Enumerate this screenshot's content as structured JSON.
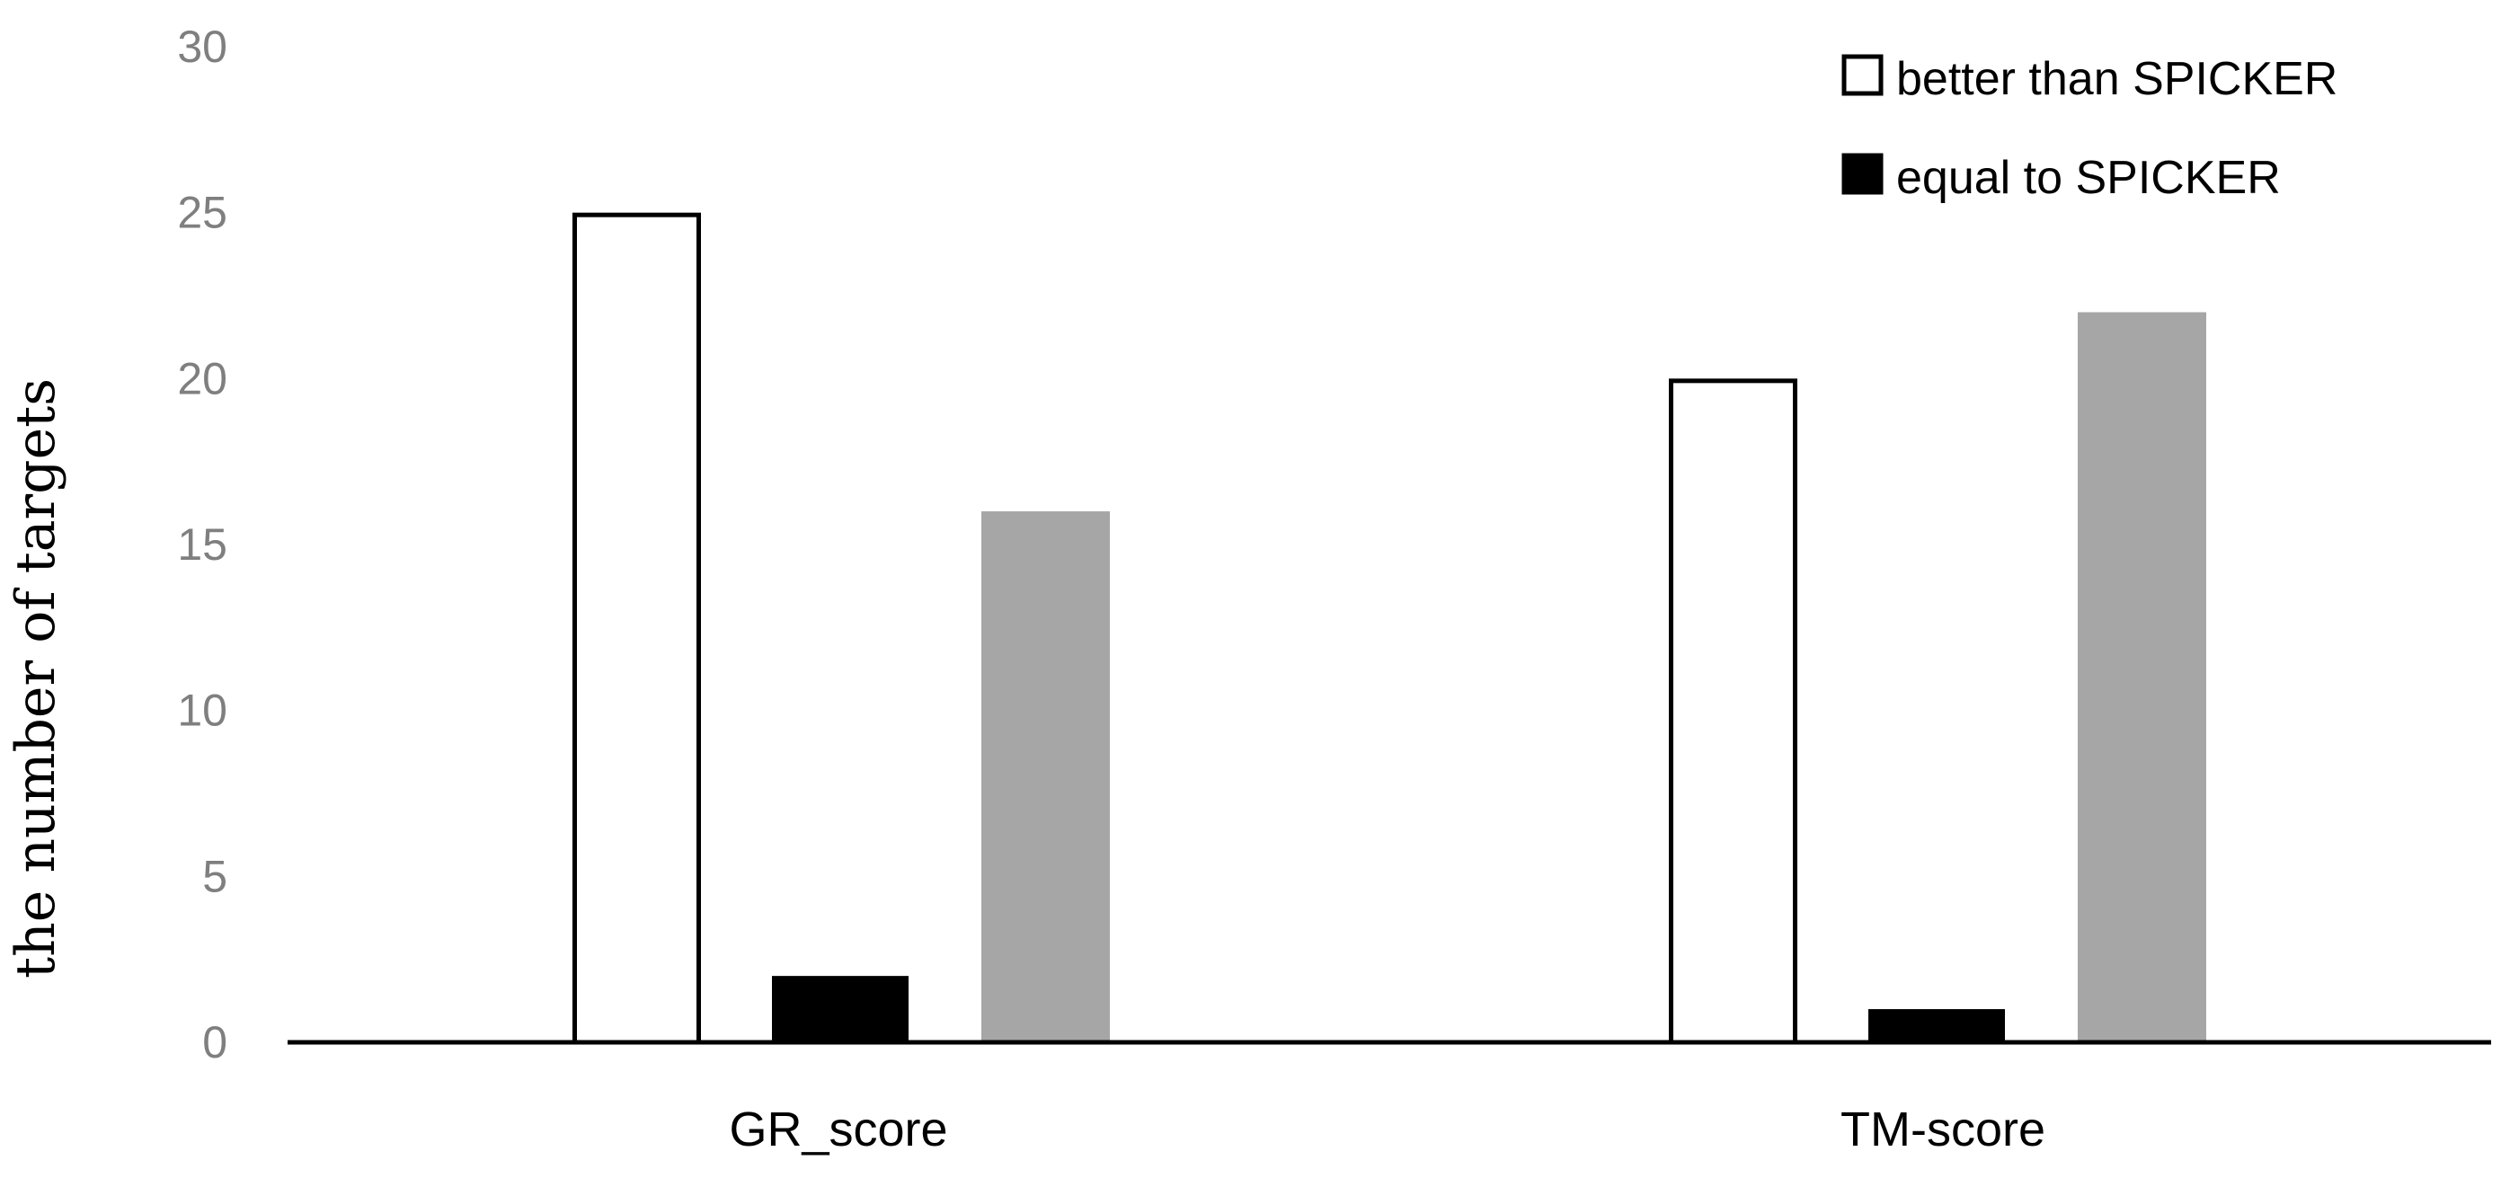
{
  "chart_data": {
    "type": "bar",
    "title": "",
    "xlabel": "",
    "ylabel": "the number of targets",
    "categories": [
      "GR_score",
      "TM-score"
    ],
    "series": [
      {
        "name": "better than SPICKER",
        "values": [
          25,
          20
        ],
        "fill": "#ffffff",
        "stroke": "#000000"
      },
      {
        "name": "equal to SPICKER",
        "values": [
          2,
          1
        ],
        "fill": "#000000",
        "stroke": "#000000"
      },
      {
        "values": [
          16,
          22
        ],
        "fill": "#a6a6a6",
        "stroke": "none"
      }
    ],
    "ylim": [
      0,
      30
    ],
    "yticks": [
      "0",
      "5",
      "10",
      "15",
      "20",
      "25",
      "30"
    ],
    "grid": false,
    "legend_position": "top-right"
  }
}
